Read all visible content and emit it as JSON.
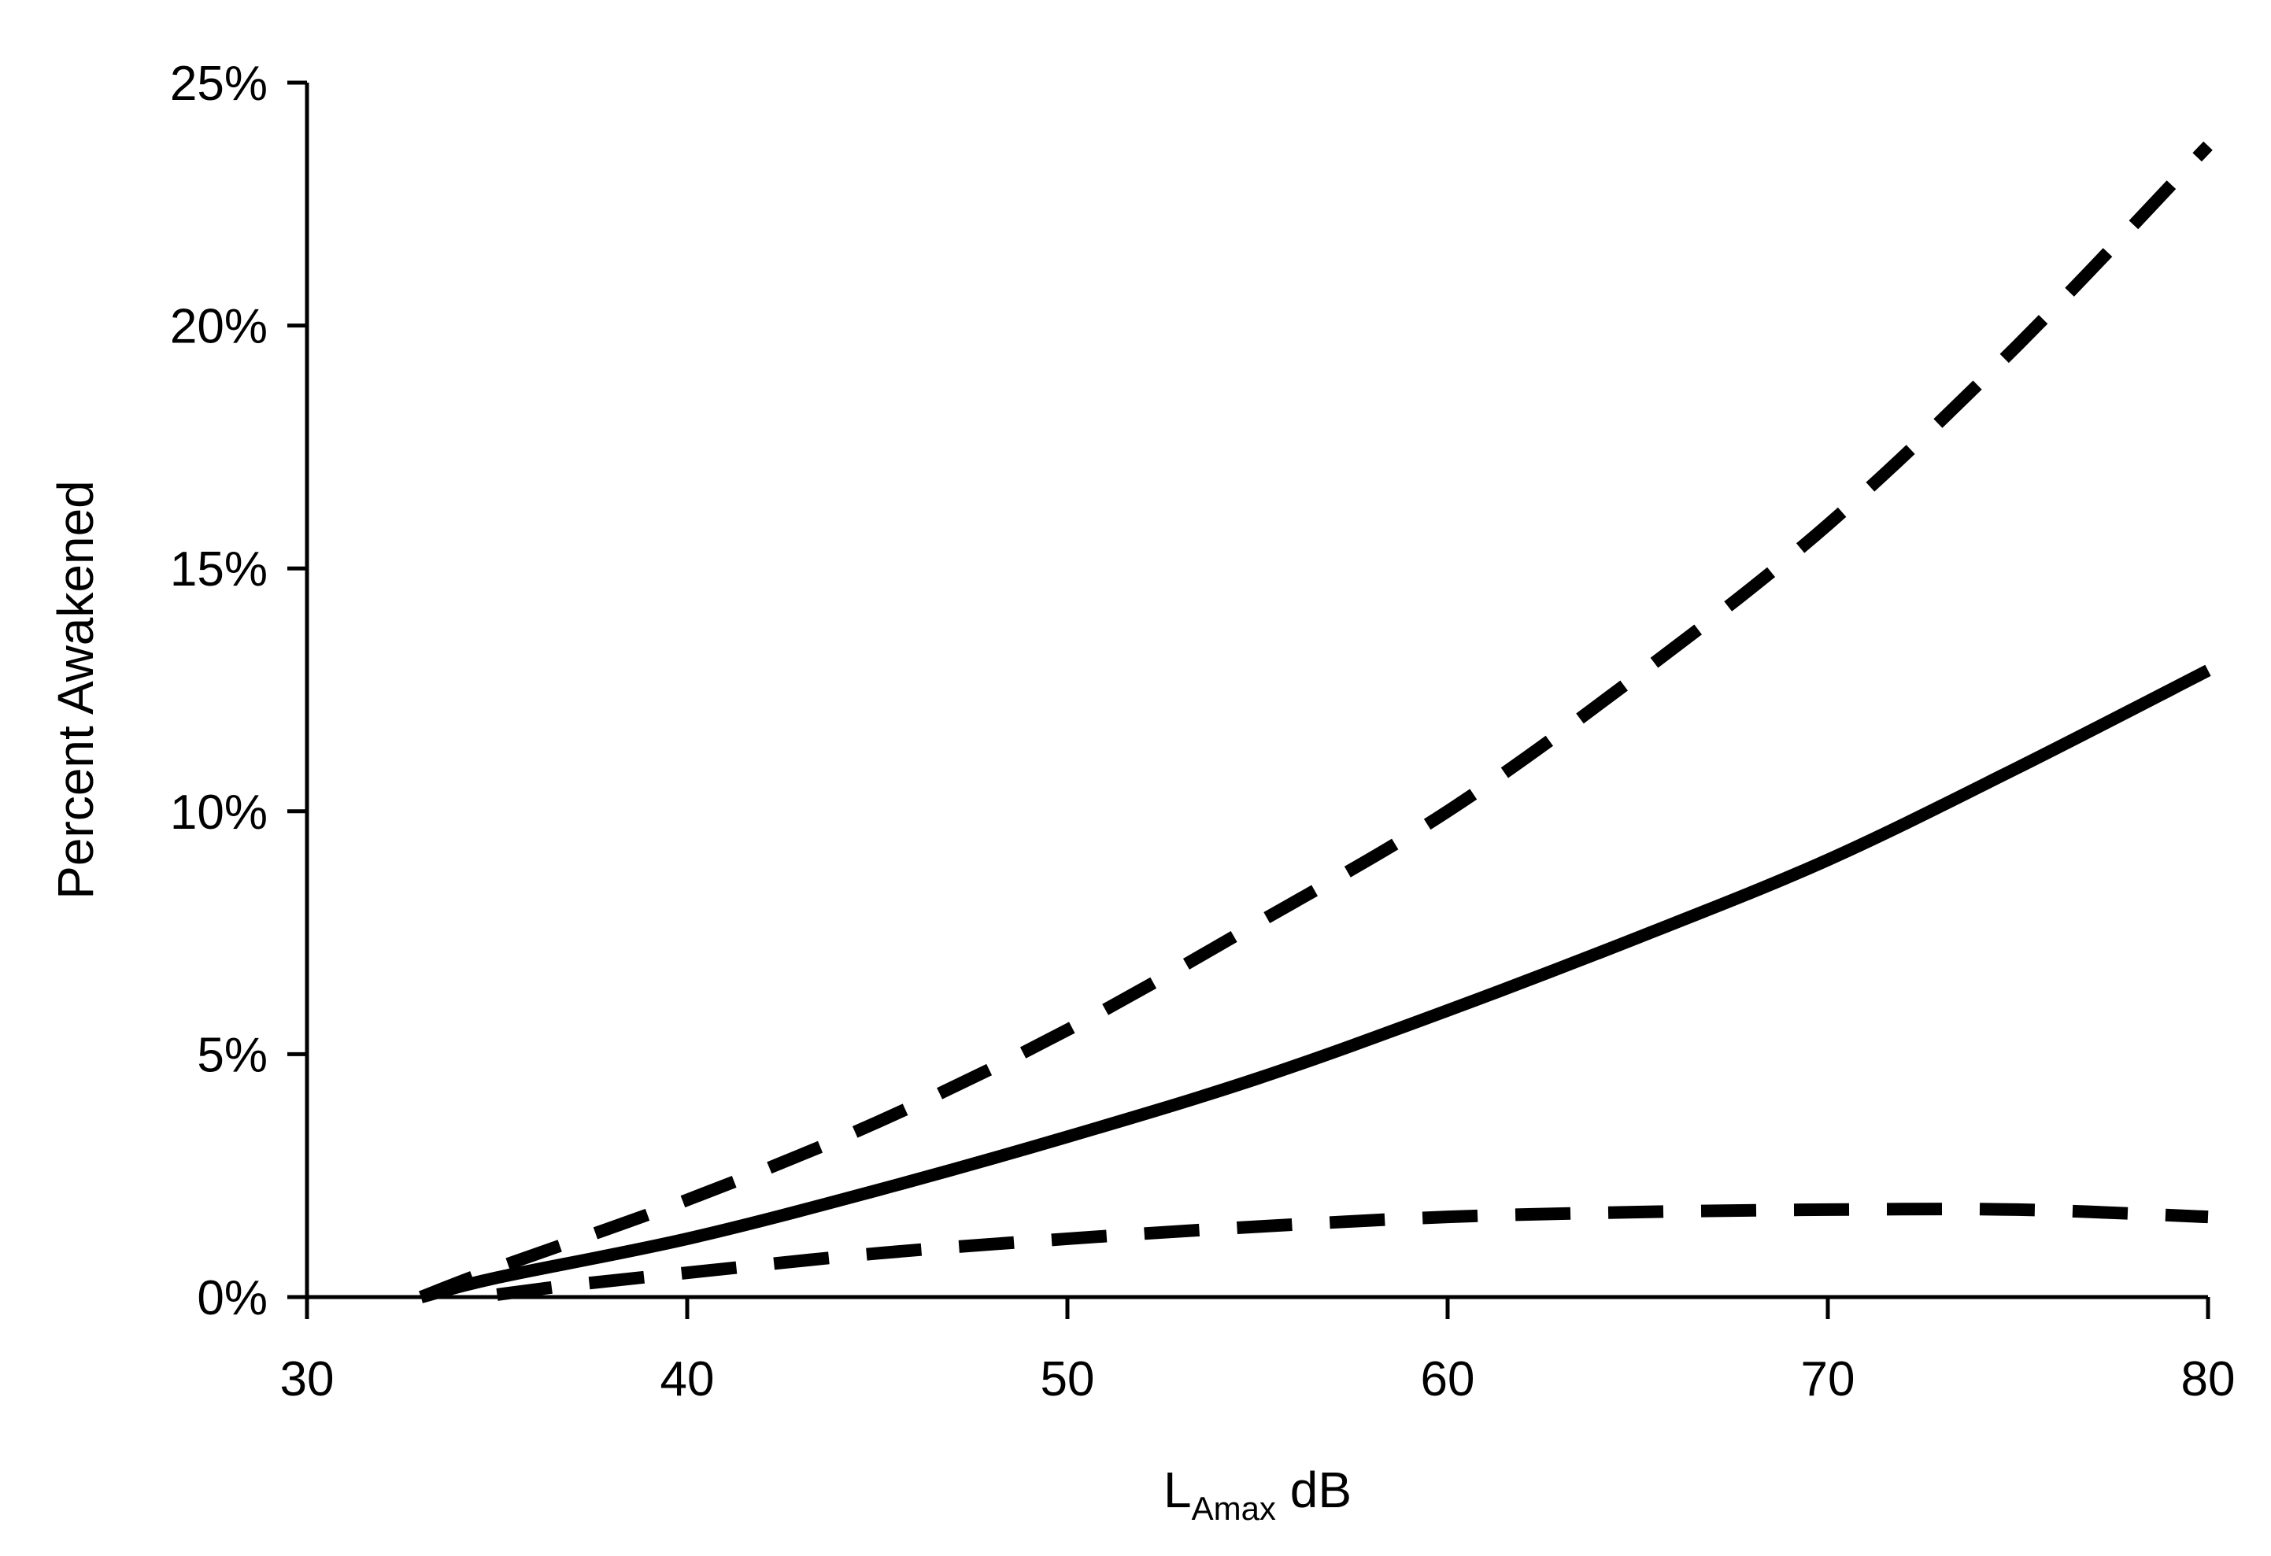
{
  "chart_data": {
    "type": "line",
    "title": "",
    "xlabel": {
      "main": "L",
      "subscript": "Amax",
      "suffix": " dB"
    },
    "ylabel": "Percent Awakened",
    "xlim": [
      30,
      80
    ],
    "ylim": [
      0,
      25
    ],
    "x_ticks": [
      {
        "value": 30,
        "label": "30"
      },
      {
        "value": 40,
        "label": "40"
      },
      {
        "value": 50,
        "label": "50"
      },
      {
        "value": 60,
        "label": "60"
      },
      {
        "value": 70,
        "label": "70"
      },
      {
        "value": 80,
        "label": "80"
      }
    ],
    "y_ticks": [
      {
        "value": 0,
        "label": "0%"
      },
      {
        "value": 5,
        "label": "5%"
      },
      {
        "value": 10,
        "label": "10%"
      },
      {
        "value": 15,
        "label": "15%"
      },
      {
        "value": 20,
        "label": "20%"
      },
      {
        "value": 25,
        "label": "25%"
      }
    ],
    "grid": false,
    "legend": "none",
    "series": [
      {
        "style": "solid",
        "color": "#000000",
        "x": [
          33,
          35,
          40,
          45,
          50,
          55,
          60,
          65,
          70,
          75,
          80
        ],
        "y": [
          0,
          0.4,
          1.2,
          2.2,
          3.3,
          4.5,
          5.9,
          7.4,
          9.0,
          10.9,
          12.9
        ]
      },
      {
        "style": "dashed",
        "color": "#000000",
        "x": [
          33,
          35,
          40,
          45,
          50,
          55,
          60,
          65,
          70,
          75,
          80
        ],
        "y": [
          0,
          0.6,
          2.0,
          3.6,
          5.5,
          7.7,
          10.0,
          12.8,
          15.9,
          19.6,
          23.7
        ]
      },
      {
        "style": "dashed",
        "color": "#000000",
        "x": [
          35,
          37,
          40,
          45,
          50,
          55,
          60,
          65,
          70,
          75,
          80
        ],
        "y": [
          0.05,
          0.25,
          0.5,
          0.9,
          1.2,
          1.45,
          1.65,
          1.75,
          1.8,
          1.8,
          1.65
        ]
      }
    ]
  }
}
